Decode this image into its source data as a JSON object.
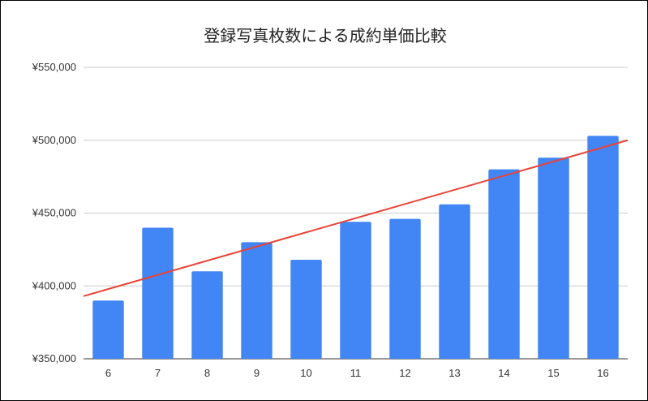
{
  "chart_data": {
    "type": "bar",
    "title": "登録写真枚数による成約単価比較",
    "xlabel": "",
    "ylabel": "",
    "categories": [
      "6",
      "7",
      "8",
      "9",
      "10",
      "11",
      "12",
      "13",
      "14",
      "15",
      "16"
    ],
    "values": [
      390000,
      440000,
      410000,
      430000,
      418000,
      444000,
      446000,
      456000,
      480000,
      488000,
      503000
    ],
    "ylim": [
      350000,
      550000
    ],
    "yticks": [
      350000,
      400000,
      450000,
      500000,
      550000
    ],
    "ytick_labels": [
      "¥350,000",
      "¥400,000",
      "¥450,000",
      "¥500,000",
      "¥550,000"
    ],
    "trendline": {
      "type": "linear",
      "start_value": 393000,
      "end_value": 500000
    },
    "bar_color": "#4285F4",
    "trendline_color": "#EA4335",
    "grid": true,
    "legend": "none"
  }
}
